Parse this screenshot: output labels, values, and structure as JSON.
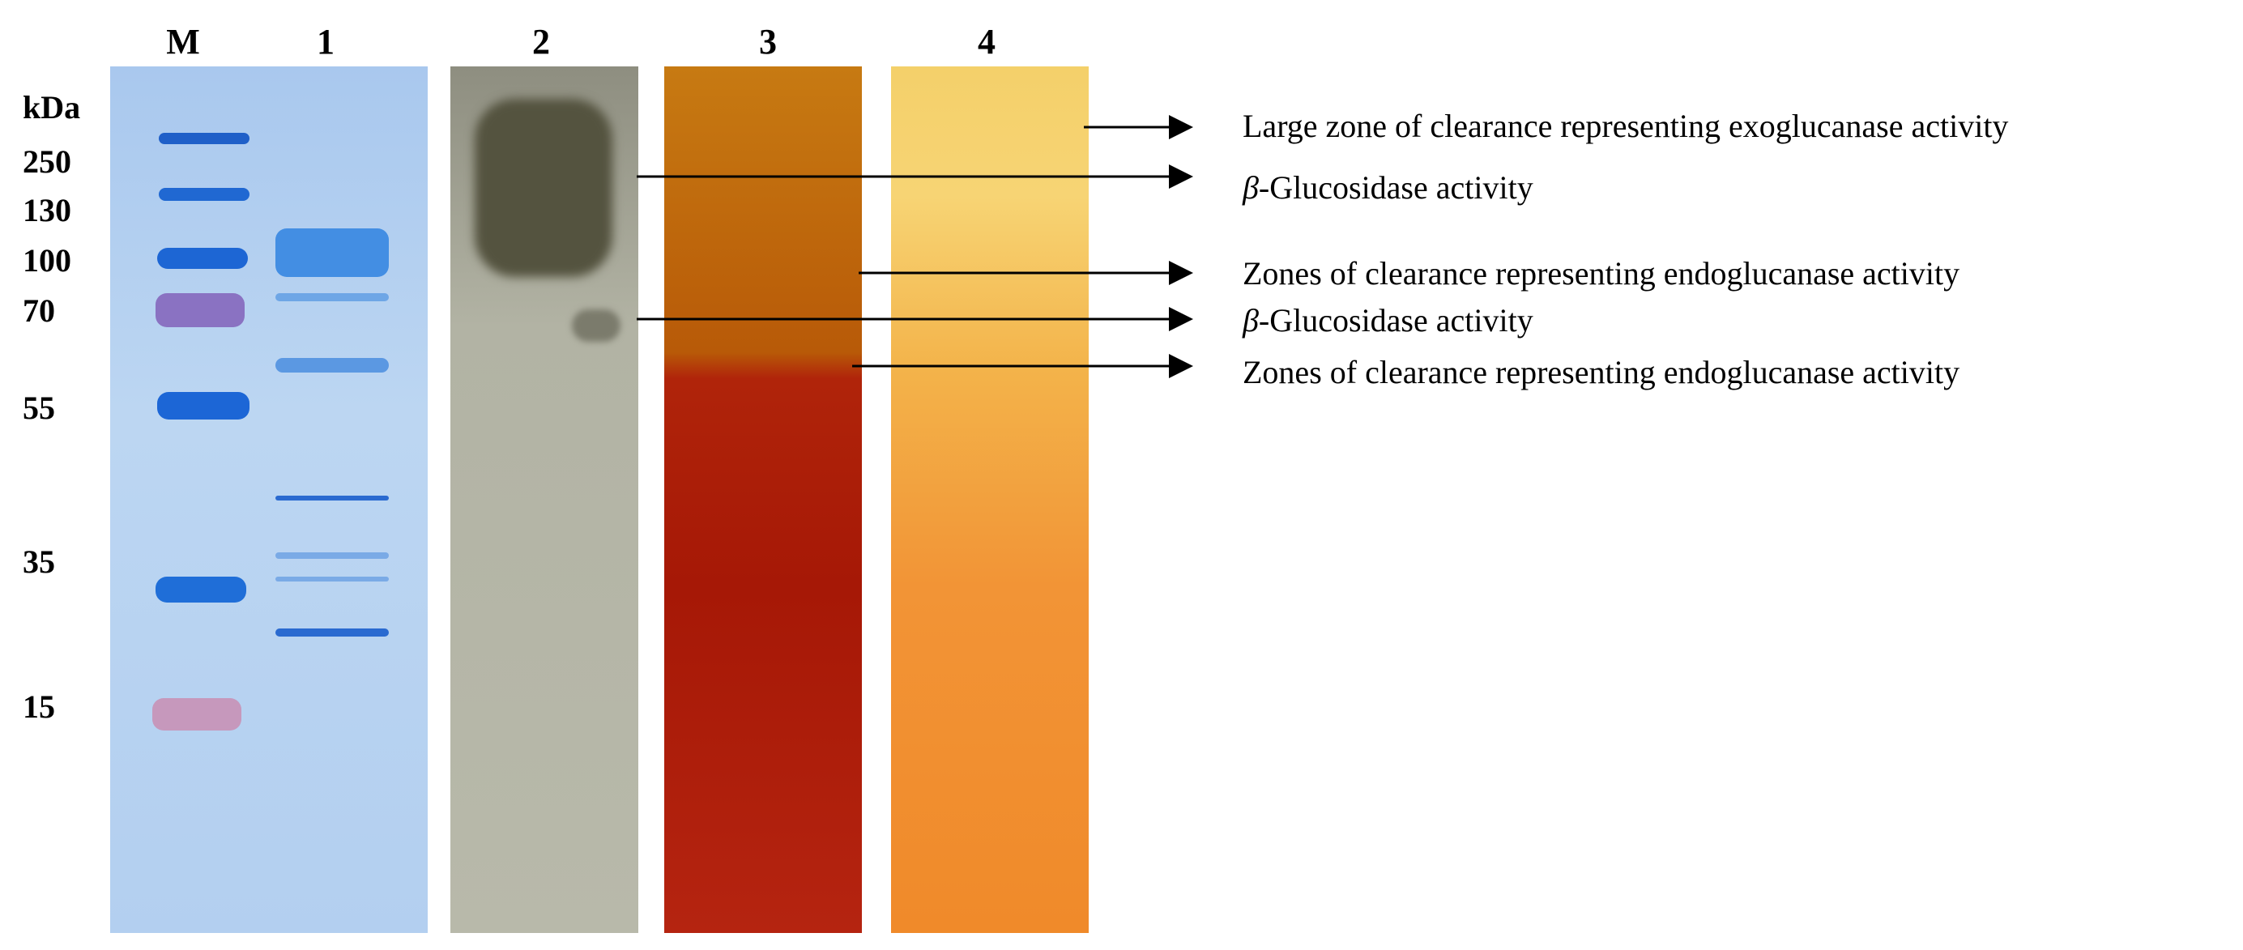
{
  "lanes": {
    "marker": "M",
    "lane1": "1",
    "lane2": "2",
    "lane3": "3",
    "lane4": "4"
  },
  "ladder": {
    "unit": "kDa",
    "sizes": [
      "250",
      "130",
      "100",
      "70",
      "55",
      "35",
      "15"
    ]
  },
  "annotations": [
    {
      "prefix": "",
      "text": "Large zone of clearance representing  exoglucanase activity"
    },
    {
      "prefix": "β",
      "text": "-Glucosidase activity"
    },
    {
      "prefix": "",
      "text": "Zones of clearance representing  endoglucanase activity"
    },
    {
      "prefix": "β",
      "text": "-Glucosidase activity"
    },
    {
      "prefix": "",
      "text": "Zones of clearance representing  endoglucanase activity"
    }
  ],
  "colors": {
    "coomassie_bg": "#b8d3f0",
    "coomassie_band": "#1f6fd6",
    "marker_purple": "#8a6fc0",
    "marker_pink": "#c88ab0",
    "zymogram_gray": "#b6b7a8",
    "congo_red_top": "#c9760f",
    "congo_red_bottom": "#a81503",
    "lane4_top": "#f6d774",
    "lane4_bottom": "#f08a2a"
  }
}
